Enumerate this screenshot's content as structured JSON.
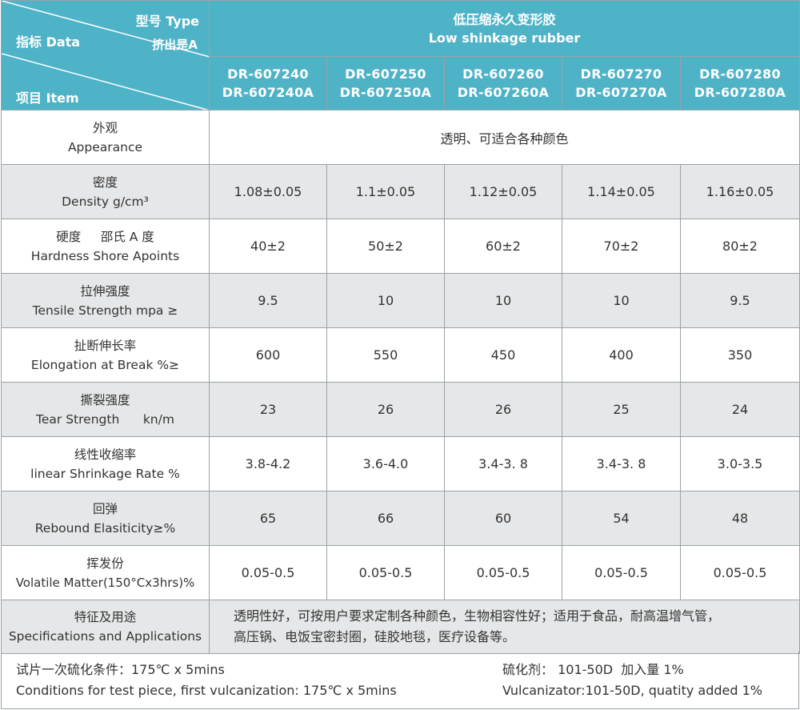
{
  "header": {
    "corner": {
      "type_label": "型号 Type",
      "extrude_label": "挤出是A",
      "data_label": "指标 Data",
      "item_label": "项目 Item"
    },
    "product_zh": "低压缩永久变形胶",
    "product_en": "Low shinkage rubber",
    "models": [
      {
        "line1": "DR-607240",
        "line2": "DR-607240A"
      },
      {
        "line1": "DR-607250",
        "line2": "DR-607250A"
      },
      {
        "line1": "DR-607260",
        "line2": "DR-607260A"
      },
      {
        "line1": "DR-607270",
        "line2": "DR-607270A"
      },
      {
        "line1": "DR-607280",
        "line2": "DR-607280A"
      }
    ]
  },
  "appearance": {
    "zh": "外观",
    "en": "Appearance",
    "value": "透明、可适合各种颜色"
  },
  "rows": [
    {
      "zh": "密度",
      "en": "Density  g/cm³",
      "values": [
        "1.08±0.05",
        "1.1±0.05",
        "1.12±0.05",
        "1.14±0.05",
        "1.16±0.05"
      ]
    },
    {
      "zh": "硬度     邵氏 A 度",
      "en": "Hardness  Shore Apoints",
      "values": [
        "40±2",
        "50±2",
        "60±2",
        "70±2",
        "80±2"
      ]
    },
    {
      "zh": "拉伸强度",
      "en": "Tensile Strength  mpa ≥",
      "values": [
        "9.5",
        "10",
        "10",
        "10",
        "9.5"
      ]
    },
    {
      "zh": "扯断伸长率",
      "en": "Elongation at Break %≥",
      "values": [
        "600",
        "550",
        "450",
        "400",
        "350"
      ]
    },
    {
      "zh": "撕裂强度",
      "en": "Tear Strength      kn/m",
      "values": [
        "23",
        "26",
        "26",
        "25",
        "24"
      ]
    },
    {
      "zh": "线性收缩率",
      "en": "linear Shrinkage Rate %",
      "values": [
        "3.8-4.2",
        "3.6-4.0",
        "3.4-3. 8",
        "3.4-3. 8",
        "3.0-3.5"
      ]
    },
    {
      "zh": "回弹",
      "en": "Rebound Elasiticity≥%",
      "values": [
        "65",
        "66",
        "60",
        "54",
        "48"
      ]
    },
    {
      "zh": "挥发份",
      "en": "Volatile Matter(150°Cx3hrs)%",
      "values": [
        "0.05-0.5",
        "0.05-0.5",
        "0.05-0.5",
        "0.05-0.5",
        "0.05-0.5"
      ]
    }
  ],
  "specifications": {
    "zh": "特征及用途",
    "en": "Specifications and Applications",
    "line1": "透明性好，可按用户要求定制各种颜色，生物相容性好；适用于食品，耐高温增气管，",
    "line2": "高压锅、电饭宝密封圈，硅胶地毯，医疗设备等。"
  },
  "footer": {
    "cond_zh": "试片一次硫化条件：175℃ x 5mins",
    "cond_en": "Conditions for test piece, first vulcanization: 175℃ x 5mins",
    "vulc_zh": "硫化剂： 101-50D  加入量 1%",
    "vulc_en": "Vulcanizator:101-50D, quatity added 1%"
  },
  "colors": {
    "header_bg": "#4fb3c8",
    "stripe_bg": "#e6e7e8",
    "border": "#9aa3a8"
  }
}
